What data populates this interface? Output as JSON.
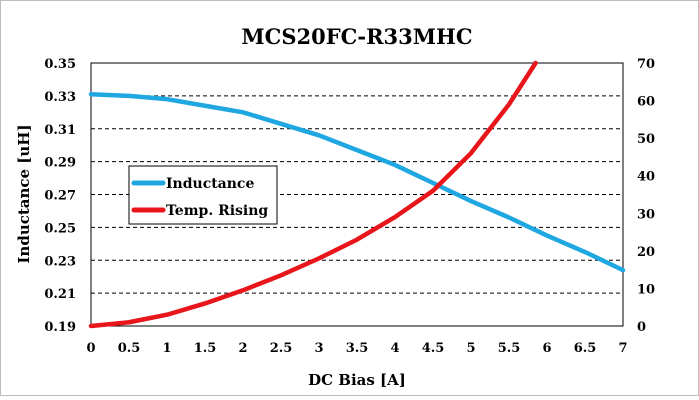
{
  "chart_data": {
    "type": "line",
    "title": "MCS20FC-R33MHC",
    "xlabel": "DC Bias [A]",
    "ylabel": "Inductance [uH]",
    "y2label": "",
    "xlim": [
      0,
      7
    ],
    "ylim": [
      0.19,
      0.35
    ],
    "y2lim": [
      0,
      70
    ],
    "x_ticks": [
      "0",
      "0.5",
      "1",
      "1.5",
      "2",
      "2.5",
      "3",
      "3.5",
      "4",
      "4.5",
      "5",
      "5.5",
      "6",
      "6.5",
      "7"
    ],
    "y_ticks": [
      "0.19",
      "0.21",
      "0.23",
      "0.25",
      "0.27",
      "0.29",
      "0.31",
      "0.33",
      "0.35"
    ],
    "y2_ticks": [
      "0",
      "10",
      "20",
      "30",
      "40",
      "50",
      "60",
      "70"
    ],
    "grid": "horizontal-dashed",
    "legend_position": "middle-left",
    "series": [
      {
        "name": "Inductance",
        "axis": "left",
        "color": "#1ea7e1",
        "x": [
          0,
          0.5,
          1,
          1.5,
          2,
          2.5,
          3,
          3.5,
          4,
          4.5,
          5,
          5.5,
          6,
          6.5,
          7
        ],
        "y": [
          0.331,
          0.33,
          0.328,
          0.324,
          0.32,
          0.313,
          0.306,
          0.297,
          0.288,
          0.277,
          0.266,
          0.256,
          0.245,
          0.235,
          0.224
        ]
      },
      {
        "name": "Temp. Rising",
        "axis": "right",
        "color": "#e8151b",
        "x": [
          0,
          0.5,
          1,
          1.5,
          2,
          2.5,
          3,
          3.5,
          4,
          4.5,
          5,
          5.5,
          5.85
        ],
        "y": [
          0,
          1,
          3,
          6,
          9.5,
          13.5,
          18,
          23,
          29,
          36,
          46,
          59,
          70
        ]
      }
    ]
  }
}
